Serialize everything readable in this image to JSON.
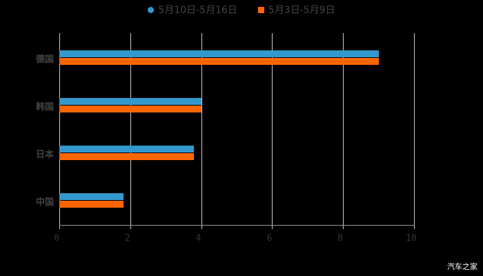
{
  "legend": [
    {
      "label": "5月10日-5月16日",
      "color": "#3399cc"
    },
    {
      "label": "5月3日-5月9日",
      "color": "#ff6600"
    }
  ],
  "watermark": "汽车之家",
  "chart_data": {
    "type": "bar",
    "orientation": "horizontal",
    "categories": [
      "德国",
      "韩国",
      "日本",
      "中国"
    ],
    "series": [
      {
        "name": "5月10日-5月16日",
        "color": "#3399cc",
        "values": [
          9,
          4,
          3.8,
          1.8
        ]
      },
      {
        "name": "5月3日-5月9日",
        "color": "#ff6600",
        "values": [
          9,
          4,
          3.8,
          1.8
        ]
      }
    ],
    "xticks": [
      "0",
      "2",
      "4",
      "6",
      "8",
      "10"
    ],
    "xlim": [
      0,
      10
    ],
    "grid": true,
    "legend_position": "top",
    "title": "",
    "xlabel": "",
    "ylabel": ""
  }
}
